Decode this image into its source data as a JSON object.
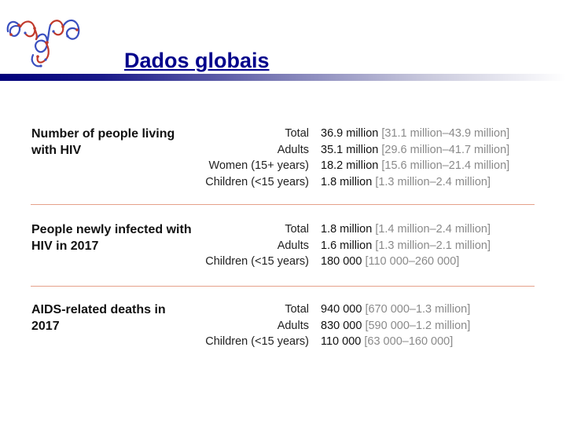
{
  "slide": {
    "title": "Dados globais"
  },
  "logo": {
    "icon": "molecule-structure-icon"
  },
  "sections": [
    {
      "title": "Number of people living with HIV",
      "rows": [
        {
          "label": "Total",
          "value": "36.9 million",
          "range": "[31.1 million–43.9 million]"
        },
        {
          "label": "Adults",
          "value": "35.1 million",
          "range": "[29.6 million–41.7 million]"
        },
        {
          "label": "Women (15+ years)",
          "value": "18.2 million",
          "range": "[15.6 million–21.4 million]"
        },
        {
          "label": "Children (<15 years)",
          "value": "1.8 million",
          "range": "[1.3 million–2.4 million]"
        }
      ]
    },
    {
      "title": "People newly infected with HIV in 2017",
      "rows": [
        {
          "label": "Total",
          "value": "1.8 million",
          "range": "[1.4 million–2.4 million]"
        },
        {
          "label": "Adults",
          "value": "1.6 million",
          "range": "[1.3 million–2.1 million]"
        },
        {
          "label": "Children (<15 years)",
          "value": "180 000",
          "range": "[110 000–260 000]"
        }
      ]
    },
    {
      "title": "AIDS-related deaths in 2017",
      "rows": [
        {
          "label": "Total",
          "value": "940 000",
          "range": "[670 000–1.3 million]"
        },
        {
          "label": "Adults",
          "value": "830 000",
          "range": "[590 000–1.2 million]"
        },
        {
          "label": "Children (<15 years)",
          "value": "110 000",
          "range": "[63 000–160 000]"
        }
      ]
    }
  ]
}
